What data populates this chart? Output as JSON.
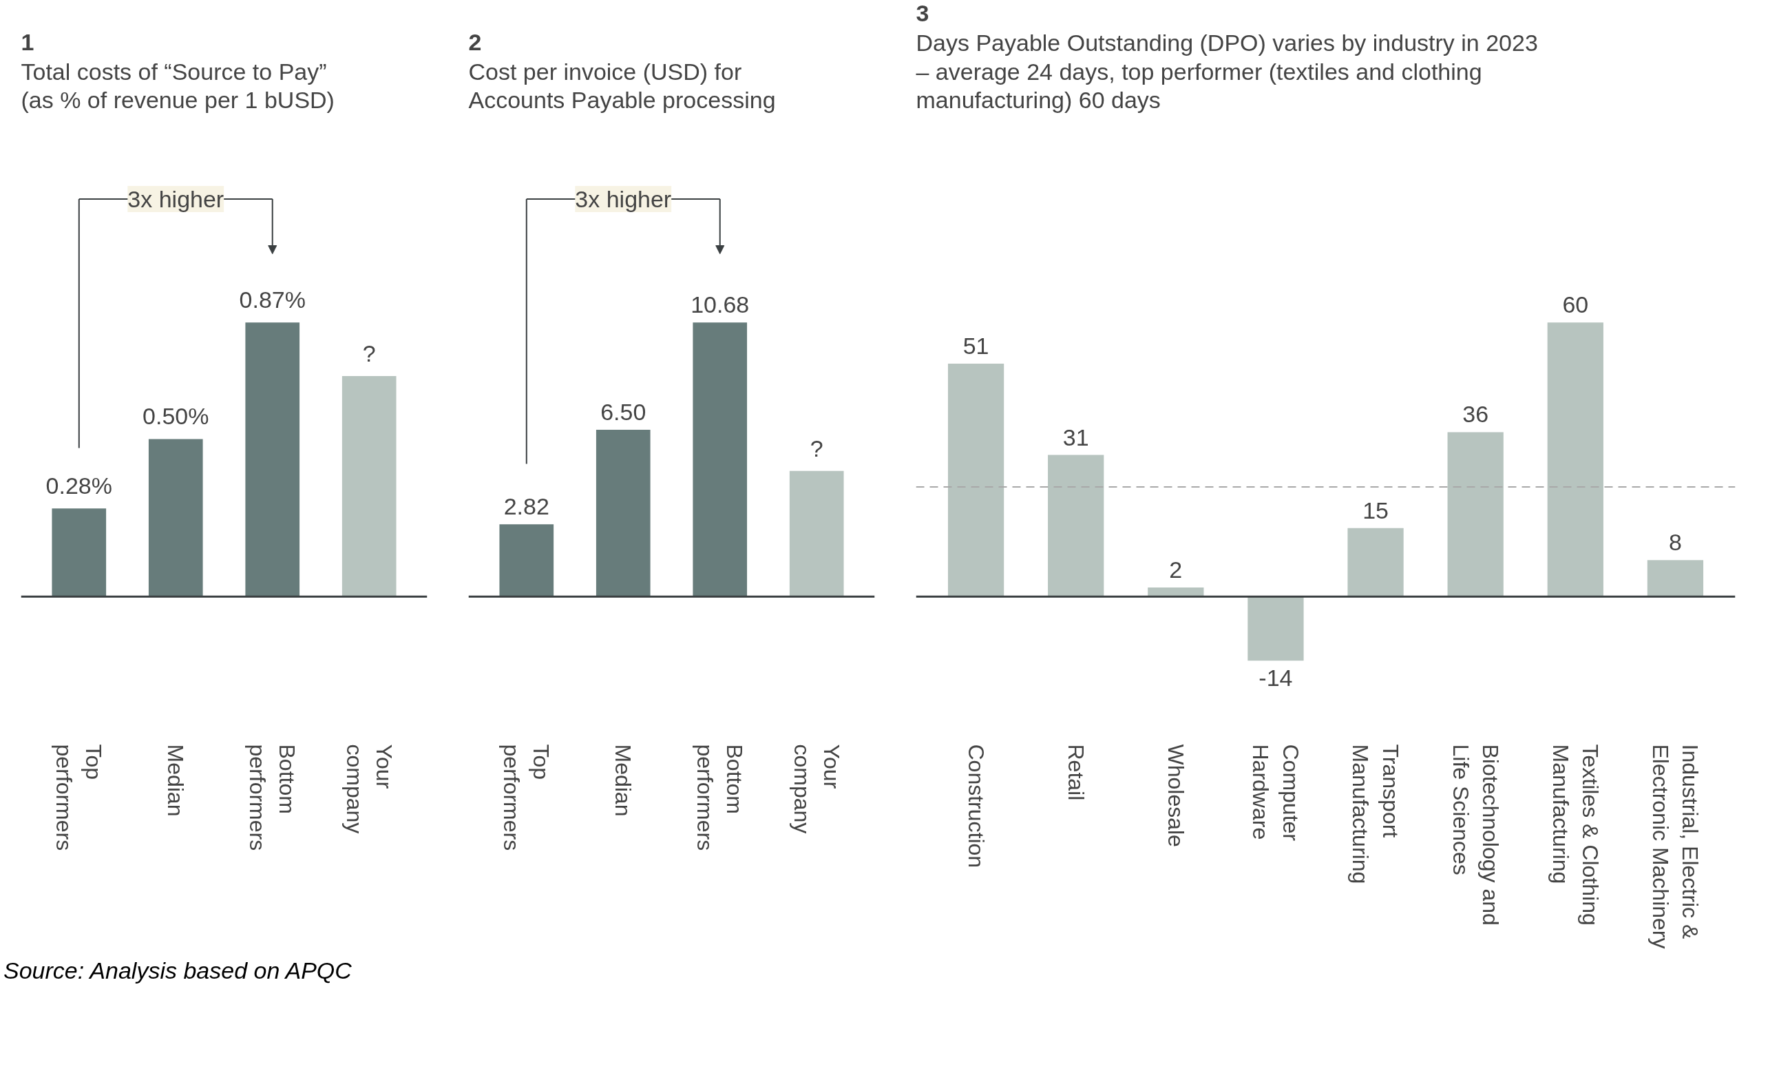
{
  "chart_data": [
    {
      "type": "bar",
      "title": "1",
      "subtitle": "Total costs of “Source to Pay”\n(as % of revenue per 1 bUSD)",
      "categories": [
        "Top\nperformers",
        "Median",
        "Bottom\nperformers",
        "Your\ncompany"
      ],
      "values": [
        0.28,
        0.5,
        0.87,
        0.7
      ],
      "colors": [
        "#677c7b",
        "#677c7b",
        "#677c7b",
        "#b7c4bf"
      ],
      "value_labels": [
        "0.28%",
        "0.50%",
        "0.87%",
        "?"
      ],
      "tick_labels": "x",
      "annotations": [
        "3x higher",
        "Source: Analysis based on APQC"
      ]
    },
    {
      "type": "bar",
      "title": "2",
      "subtitle": "Cost per invoice (USD) for\nAccounts Payable processing",
      "categories": [
        "Top\nperformers",
        "Median",
        "Bottom\nperformers",
        "Your\ncompany"
      ],
      "values": [
        2.82,
        6.5,
        10.68,
        4.9
      ],
      "colors": [
        "#677c7b",
        "#677c7b",
        "#677c7b",
        "#b7c4bf"
      ],
      "value_labels": [
        "2.82",
        "6.50",
        "10.68",
        "?"
      ],
      "tick_labels": "x",
      "annotations": [
        "3x higher"
      ]
    },
    {
      "type": "bar",
      "title": "3",
      "subtitle": "Days Payable Outstanding (DPO) varies by industry in 2023\n– average 24 days, top performer (textiles and clothing\nmanufacturing) 60 days",
      "categories": [
        "Construction",
        "Retail",
        "Wholesale",
        "Computer\nHardware",
        "Transport\nManufacturing",
        "Biotechnology and\nLife Sciences",
        "Textiles & Clothing\nManufacturing",
        "Industrial, Electric &\nElectronic Machinery"
      ],
      "values": [
        51,
        31,
        2,
        -14,
        15,
        36,
        60,
        8
      ],
      "color": "#b7c4bf",
      "data_labels": true,
      "tick_labels": "x",
      "grid": false,
      "ref_lines": [
        {
          "axis": "y",
          "value": 24,
          "color": "#a8a8a8",
          "line_style": "dashed"
        }
      ]
    }
  ]
}
